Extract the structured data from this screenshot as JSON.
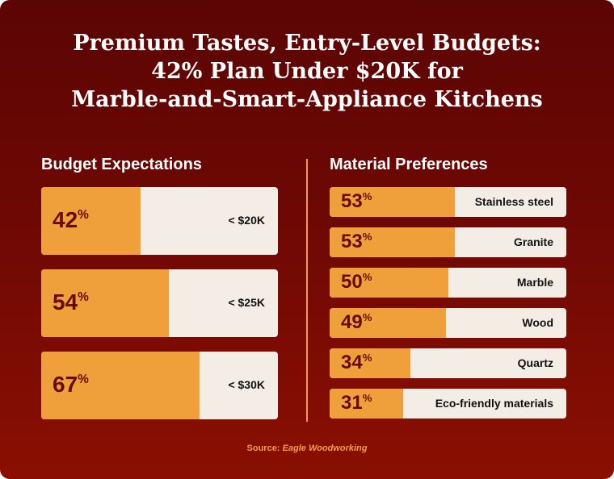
{
  "title": [
    "Premium Tastes, Entry-Level Budgets:",
    "42% Plan Under $20K for",
    "Marble-and-Smart-Appliance Kitchens"
  ],
  "colors": {
    "bar_fill": "#f0a03a",
    "bar_track": "#f3ede6",
    "pct_text": "#6a0a05",
    "background_top": "#5b0504",
    "background_bottom": "#8a0f02"
  },
  "chart_data": [
    {
      "type": "bar",
      "orientation": "horizontal",
      "title": "Budget Expectations",
      "categories": [
        "< $20K",
        "< $25K",
        "< $30K"
      ],
      "values": [
        42,
        54,
        67
      ],
      "unit": "%",
      "xlim": [
        0,
        100
      ]
    },
    {
      "type": "bar",
      "orientation": "horizontal",
      "title": "Material Preferences",
      "categories": [
        "Stainless steel",
        "Granite",
        "Marble",
        "Wood",
        "Quartz",
        "Eco-friendly materials"
      ],
      "values": [
        53,
        53,
        50,
        49,
        34,
        31
      ],
      "unit": "%",
      "xlim": [
        0,
        100
      ]
    }
  ],
  "source": {
    "prefix": "Source:",
    "name": "Eagle Woodworking"
  }
}
